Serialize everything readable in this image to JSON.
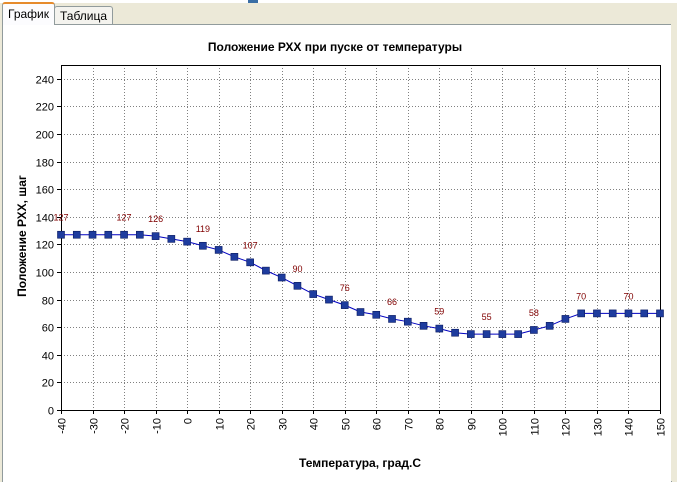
{
  "window": {
    "tabs": [
      {
        "label": "График",
        "active": true
      },
      {
        "label": "Таблица",
        "active": false
      }
    ]
  },
  "colors": {
    "series": "#0000c0",
    "marker": "#1e3c9e",
    "data_label": "#800000",
    "grid": "#808080"
  },
  "chart_data": {
    "type": "line",
    "title": "Положение РХХ при пуске от температуры",
    "xlabel": "Температура, град.С",
    "ylabel": "Положение РХХ, шаг",
    "xlim": [
      -40,
      150
    ],
    "ylim": [
      0,
      250
    ],
    "xticks": [
      -40,
      -30,
      -20,
      -10,
      0,
      10,
      20,
      30,
      40,
      50,
      60,
      70,
      80,
      90,
      100,
      110,
      120,
      130,
      140,
      150
    ],
    "yticks": [
      0,
      20,
      40,
      60,
      80,
      100,
      120,
      140,
      160,
      180,
      200,
      220,
      240
    ],
    "grid": true,
    "series": [
      {
        "x": [
          -40,
          -35,
          -30,
          -25,
          -20,
          -15,
          -10,
          -5,
          0,
          5,
          10,
          15,
          20,
          25,
          30,
          35,
          40,
          45,
          50,
          55,
          60,
          65,
          70,
          75,
          80,
          85,
          90,
          95,
          100,
          105,
          110,
          115,
          120,
          125,
          130,
          135,
          140,
          145,
          150
        ],
        "y": [
          127,
          127,
          127,
          127,
          127,
          127,
          126,
          124,
          122,
          119,
          116,
          111,
          107,
          101,
          96,
          90,
          84,
          80,
          76,
          71,
          69,
          66,
          64,
          61,
          59,
          56,
          55,
          55,
          55,
          55,
          58,
          61,
          66,
          70,
          70,
          70,
          70,
          70,
          70
        ]
      }
    ],
    "data_labels": [
      {
        "x": -40,
        "label": "127"
      },
      {
        "x": -20,
        "label": "127"
      },
      {
        "x": -10,
        "label": "126"
      },
      {
        "x": 5,
        "label": "119"
      },
      {
        "x": 20,
        "label": "107"
      },
      {
        "x": 35,
        "label": "90"
      },
      {
        "x": 50,
        "label": "76"
      },
      {
        "x": 65,
        "label": "66"
      },
      {
        "x": 80,
        "label": "59"
      },
      {
        "x": 95,
        "label": "55"
      },
      {
        "x": 110,
        "label": "58"
      },
      {
        "x": 125,
        "label": "70"
      },
      {
        "x": 140,
        "label": "70"
      }
    ]
  }
}
